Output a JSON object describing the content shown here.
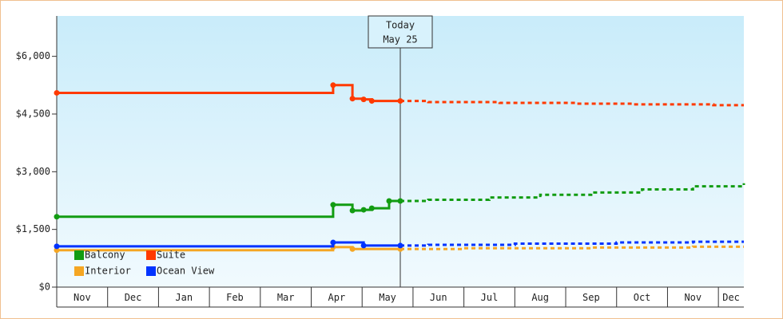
{
  "chart_data": {
    "type": "step-line",
    "today": 6.75,
    "annotation": [
      "Today",
      "May 25"
    ],
    "xlim": [
      0,
      13.5
    ],
    "xticks": [
      {
        "value": 0.5,
        "label": "Nov"
      },
      {
        "value": 1.5,
        "label": "Dec"
      },
      {
        "value": 2.5,
        "label": "Jan"
      },
      {
        "value": 3.5,
        "label": "Feb"
      },
      {
        "value": 4.5,
        "label": "Mar"
      },
      {
        "value": 5.5,
        "label": "Apr"
      },
      {
        "value": 6.5,
        "label": "May"
      },
      {
        "value": 7.5,
        "label": "Jun"
      },
      {
        "value": 8.5,
        "label": "Jul"
      },
      {
        "value": 9.5,
        "label": "Aug"
      },
      {
        "value": 10.5,
        "label": "Sep"
      },
      {
        "value": 11.5,
        "label": "Oct"
      },
      {
        "value": 12.5,
        "label": "Nov"
      },
      {
        "value": 13.25,
        "label": "Dec"
      }
    ],
    "ylim": [
      0,
      7050
    ],
    "yticks": [
      {
        "value": 0,
        "label": "$0"
      },
      {
        "value": 1500,
        "label": "$1,500"
      },
      {
        "value": 3000,
        "label": "$3,000"
      },
      {
        "value": 4500,
        "label": "$4,500"
      },
      {
        "value": 6000,
        "label": "$6,000"
      }
    ],
    "legend": "bottom-left",
    "series": [
      {
        "name": "Balcony",
        "color": "#129c12",
        "x": [
          0,
          5.43,
          5.81,
          6.03,
          6.19,
          6.53,
          6.75,
          7.3,
          8.5,
          9.5,
          10.5,
          11.5,
          12.5,
          13.5
        ],
        "values": [
          1830,
          2140,
          1990,
          2010,
          2050,
          2240,
          2240,
          2270,
          2330,
          2400,
          2460,
          2540,
          2620,
          2700
        ]
      },
      {
        "name": "Suite",
        "color": "#ff3a00",
        "x": [
          0,
          5.43,
          5.81,
          6.03,
          6.19,
          6.75,
          7.3,
          8.7,
          10.2,
          11.3,
          12.9,
          13.5
        ],
        "values": [
          5050,
          5250,
          4900,
          4880,
          4840,
          4840,
          4810,
          4790,
          4770,
          4750,
          4730,
          4730
        ]
      },
      {
        "name": "Interior",
        "color": "#f5a623",
        "x": [
          0,
          5.43,
          5.81,
          6.75,
          7.3,
          8.0,
          10.5,
          12.5,
          13.5
        ],
        "values": [
          960,
          1040,
          990,
          990,
          990,
          1010,
          1030,
          1050,
          1050
        ]
      },
      {
        "name": "Ocean View",
        "color": "#0033ff",
        "x": [
          0,
          5.43,
          6.03,
          6.75,
          7.3,
          9.0,
          11.0,
          12.5,
          13.5
        ],
        "values": [
          1060,
          1160,
          1080,
          1080,
          1100,
          1130,
          1160,
          1180,
          1180
        ]
      }
    ]
  }
}
